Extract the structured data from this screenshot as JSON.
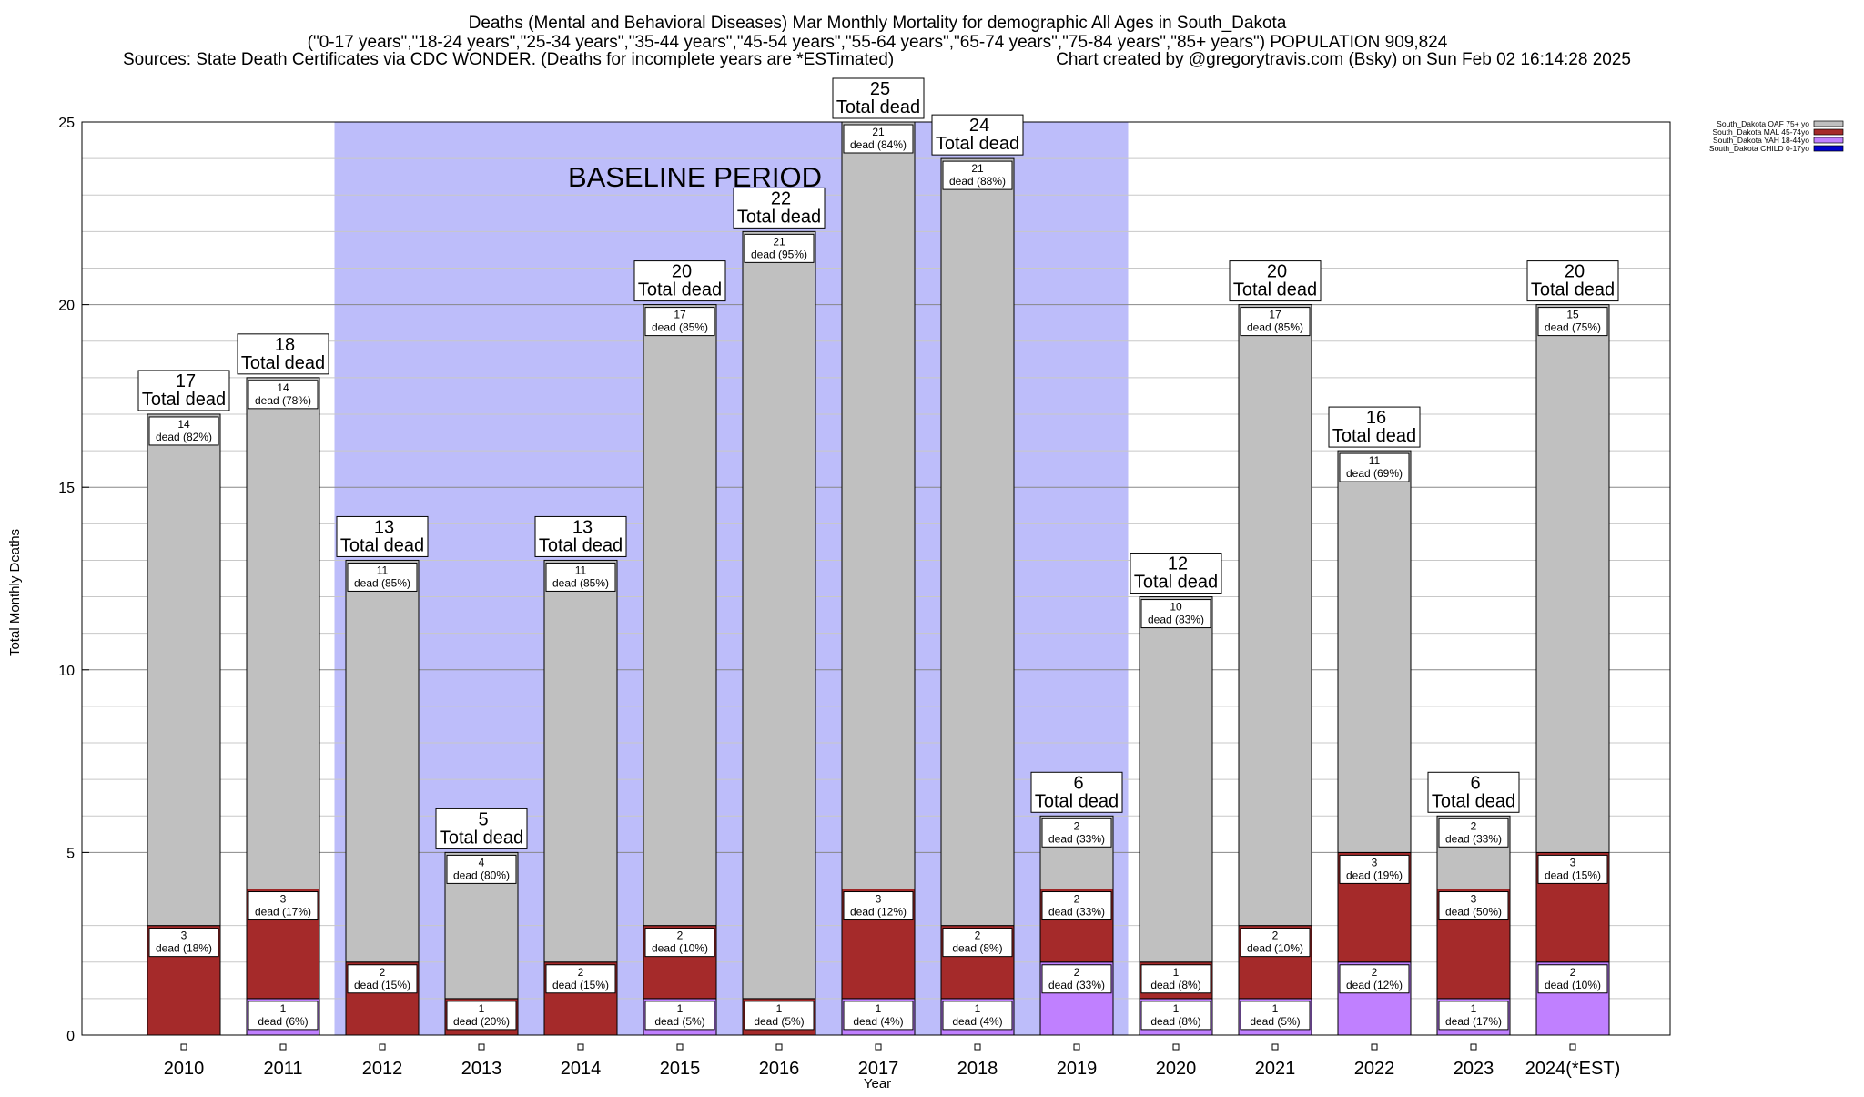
{
  "colors": {
    "baseline": "#bdbdfa",
    "oaf": "#c0c0c0",
    "mal": "#a52a2a",
    "yah": "#c080ff",
    "child": "#0000cc"
  },
  "chart_data": {
    "type": "bar",
    "stacked": true,
    "title_lines": [
      "Deaths (Mental and Behavioral Diseases) Mar Monthly Mortality for demographic All Ages in South_Dakota",
      "(\"0-17 years\",\"18-24 years\",\"25-34 years\",\"35-44 years\",\"45-54 years\",\"55-64 years\",\"65-74 years\",\"75-84 years\",\"85+ years\") POPULATION 909,824"
    ],
    "sources": "Sources: State Death Certificates via CDC WONDER. (Deaths for incomplete years are *ESTimated)",
    "credit": "Chart created by @gregorytravis.com (Bsky) on Sun Feb 02 16:14:28 2025",
    "xlabel": "Year",
    "ylabel": "Total Monthly Deaths",
    "ylim": [
      0,
      25
    ],
    "yticks": [
      0,
      5,
      10,
      15,
      20,
      25
    ],
    "grid": true,
    "legend_position": "top-right",
    "baseline_label": "BASELINE PERIOD",
    "baseline_range": [
      "2012",
      "2019"
    ],
    "total_word": "Total dead",
    "dead_word": "dead",
    "categories": [
      "2010",
      "2011",
      "2012",
      "2013",
      "2014",
      "2015",
      "2016",
      "2017",
      "2018",
      "2019",
      "2020",
      "2021",
      "2022",
      "2023",
      "2024(*EST)"
    ],
    "totals": [
      17,
      18,
      13,
      5,
      13,
      20,
      22,
      25,
      24,
      6,
      12,
      20,
      16,
      6,
      20
    ],
    "series": [
      {
        "name": "South_Dakota CHILD 0-17yo",
        "key": "child",
        "values": [
          0,
          0,
          0,
          0,
          0,
          0,
          0,
          0,
          0,
          0,
          0,
          0,
          0,
          0,
          0
        ],
        "pcts": [],
        "labeled": []
      },
      {
        "name": "South_Dakota YAH 18-44yo",
        "key": "yah",
        "values": [
          0,
          1,
          0,
          0,
          0,
          1,
          0,
          1,
          1,
          2,
          1,
          1,
          2,
          1,
          2
        ],
        "pcts": [
          "",
          "6%",
          "",
          "",
          "",
          "5%",
          "",
          "4%",
          "4%",
          "33%",
          "8%",
          "5%",
          "12%",
          "17%",
          "10%"
        ],
        "labeled": [
          false,
          true,
          false,
          false,
          false,
          true,
          false,
          true,
          true,
          true,
          true,
          true,
          true,
          true,
          true
        ]
      },
      {
        "name": "South_Dakota MAL 45-74yo",
        "key": "mal",
        "values": [
          3,
          3,
          2,
          1,
          2,
          2,
          1,
          3,
          2,
          2,
          1,
          2,
          3,
          3,
          3
        ],
        "pcts": [
          "18%",
          "17%",
          "15%",
          "20%",
          "15%",
          "10%",
          "5%",
          "12%",
          "8%",
          "33%",
          "8%",
          "10%",
          "19%",
          "50%",
          "15%"
        ],
        "labeled": [
          true,
          true,
          true,
          true,
          true,
          true,
          true,
          true,
          true,
          true,
          true,
          true,
          true,
          true,
          true
        ]
      },
      {
        "name": "South_Dakota OAF 75+ yo",
        "key": "oaf",
        "values": [
          14,
          14,
          11,
          4,
          11,
          17,
          21,
          21,
          21,
          2,
          10,
          17,
          11,
          2,
          15
        ],
        "pcts": [
          "82%",
          "78%",
          "85%",
          "80%",
          "85%",
          "85%",
          "95%",
          "84%",
          "88%",
          "33%",
          "83%",
          "85%",
          "69%",
          "33%",
          "75%"
        ],
        "labeled": [
          true,
          true,
          true,
          true,
          true,
          true,
          true,
          true,
          true,
          true,
          true,
          true,
          true,
          true,
          true
        ]
      }
    ],
    "legend_order": [
      "South_Dakota OAF 75+ yo",
      "South_Dakota MAL 45-74yo",
      "South_Dakota YAH 18-44yo",
      "South_Dakota CHILD 0-17yo"
    ]
  }
}
